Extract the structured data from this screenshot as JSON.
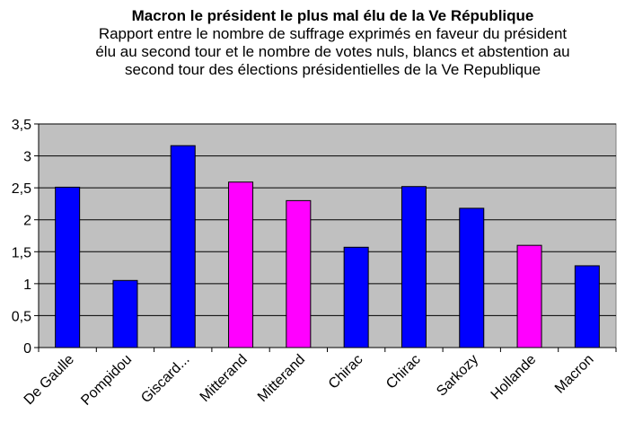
{
  "chart_data": {
    "type": "bar",
    "title": "Macron le président le plus mal élu de la Ve République",
    "subtitle_lines": [
      "Rapport entre le nombre de suffrage exprimés en faveur du président",
      "élu au second tour et le nombre de votes nuls, blancs et abstention au",
      "second tour des élections présidentielles de la Ve Republique"
    ],
    "categories": [
      "De Gaulle",
      "Pompidou",
      "Giscard...",
      "Mitterand",
      "Mitterand",
      "Chirac",
      "Chirac",
      "Sarkozy",
      "Hollande",
      "Macron"
    ],
    "values": [
      2.51,
      1.05,
      3.16,
      2.59,
      2.3,
      1.57,
      2.52,
      2.18,
      1.6,
      1.28
    ],
    "bar_colors": [
      "#0000ff",
      "#0000ff",
      "#0000ff",
      "#ff00ff",
      "#ff00ff",
      "#0000ff",
      "#0000ff",
      "#0000ff",
      "#ff00ff",
      "#0000ff"
    ],
    "ylim": [
      0,
      3.5
    ],
    "yticks": [
      {
        "value": 0,
        "label": "0"
      },
      {
        "value": 0.5,
        "label": "0,5"
      },
      {
        "value": 1,
        "label": "1"
      },
      {
        "value": 1.5,
        "label": "1,5"
      },
      {
        "value": 2,
        "label": "2"
      },
      {
        "value": 2.5,
        "label": "2,5"
      },
      {
        "value": 3,
        "label": "3"
      },
      {
        "value": 3.5,
        "label": "3,5"
      }
    ],
    "xlabel": "",
    "ylabel": "",
    "grid": true,
    "plot_background": "#c0c0c0",
    "legend": "none"
  }
}
